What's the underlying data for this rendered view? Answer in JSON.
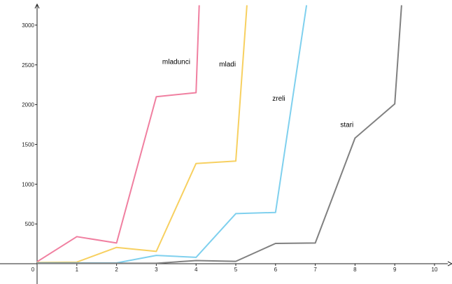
{
  "chart_data": {
    "type": "line",
    "title": "",
    "xlabel": "",
    "ylabel": "",
    "xlim": [
      0,
      10.4
    ],
    "ylim": [
      -250,
      3250
    ],
    "x_ticks": [
      0,
      1,
      2,
      3,
      4,
      5,
      6,
      7,
      8,
      9,
      10
    ],
    "y_ticks": [
      500,
      1000,
      1500,
      2000,
      2500,
      3000
    ],
    "grid": false,
    "legend": "none",
    "series": [
      {
        "name": "mladunci",
        "color": "#f07fa0",
        "x": [
          0,
          1,
          2,
          3,
          4,
          4.08
        ],
        "y": [
          25,
          340,
          260,
          2100,
          2150,
          3250
        ]
      },
      {
        "name": "mladi",
        "color": "#f7d060",
        "x": [
          0,
          1,
          2,
          3,
          4,
          5,
          5.28
        ],
        "y": [
          15,
          20,
          205,
          155,
          1260,
          1290,
          3250
        ]
      },
      {
        "name": "zreli",
        "color": "#7fd0ee",
        "x": [
          0,
          1,
          2,
          3,
          4,
          5,
          6,
          6.78
        ],
        "y": [
          10,
          10,
          10,
          105,
          80,
          630,
          645,
          3250
        ]
      },
      {
        "name": "stari",
        "color": "#808080",
        "x": [
          0,
          1,
          2,
          3,
          4,
          5,
          6,
          7,
          8,
          9,
          9.17
        ],
        "y": [
          5,
          5,
          5,
          5,
          40,
          30,
          255,
          260,
          1580,
          2010,
          3250
        ]
      }
    ],
    "labels": [
      {
        "text": "mladunci",
        "x": 3.15,
        "y": 2510
      },
      {
        "text": "mladi",
        "x": 4.58,
        "y": 2480
      },
      {
        "text": "zreli",
        "x": 5.92,
        "y": 2050
      },
      {
        "text": "stari",
        "x": 7.63,
        "y": 1720
      }
    ]
  }
}
